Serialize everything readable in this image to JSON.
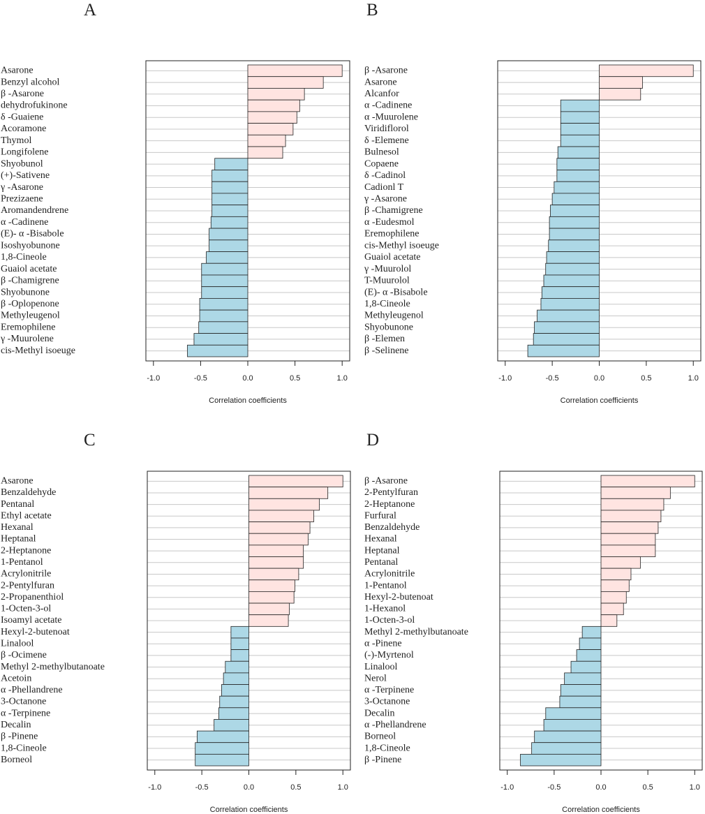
{
  "chart_data": [
    {
      "type": "bar",
      "orientation": "horizontal",
      "title": "A",
      "xlabel": "Correlation coefficients",
      "categories": [
        "Asarone",
        "Benzyl alcohol",
        "β -Asarone",
        "dehydrofukinone",
        "δ -Guaiene",
        "Acoramone",
        "Thymol",
        "Longifolene",
        "Shyobunol",
        "(+)-Sativene",
        "γ -Asarone",
        "Prezizaene",
        "Aromandendrene",
        "α -Cadinene",
        "(E)- α -Bisabole",
        "Isoshyobunone",
        "1,8-Cineole",
        "Guaiol acetate",
        "β -Chamigrene",
        "Shyobunone",
        "β -Oplopenone",
        "Methyleugenol",
        "Eremophilene",
        "γ -Muurolene",
        "cis-Methyl isoeuge"
      ],
      "values": [
        1.0,
        0.8,
        0.6,
        0.55,
        0.52,
        0.48,
        0.4,
        0.37,
        -0.35,
        -0.38,
        -0.38,
        -0.38,
        -0.38,
        -0.39,
        -0.41,
        -0.41,
        -0.44,
        -0.49,
        -0.49,
        -0.49,
        -0.51,
        -0.51,
        -0.52,
        -0.57,
        -0.64
      ],
      "colors": {
        "positive": "#ffe4e1",
        "negative": "#add8e6"
      },
      "grid": true,
      "xlim": [
        -1.08,
        1.08
      ],
      "xticks": [
        {
          "value": -1,
          "label": "-1.0"
        },
        {
          "value": -0.5,
          "label": "-0.5"
        },
        {
          "value": 0,
          "label": "0.0"
        },
        {
          "value": 0.5,
          "label": "0.5"
        },
        {
          "value": 1,
          "label": "1.0"
        }
      ]
    },
    {
      "type": "bar",
      "orientation": "horizontal",
      "title": "B",
      "xlabel": "Correlation coefficients",
      "categories": [
        "β -Asarone",
        "Asarone",
        "Alcanfor",
        "α -Cadinene",
        "α -Muurolene",
        "Viridiflorol",
        "δ -Elemene",
        "Bulnesol",
        "Copaene",
        "δ -Cadinol",
        "Cadionl T",
        "γ -Asarone",
        "β -Chamigrene",
        "α -Eudesmol",
        "Eremophilene",
        "cis-Methyl isoeuge",
        "Guaiol acetate",
        "γ -Muurolol",
        "T-Muurolol",
        "(E)- α -Bisabole",
        "1,8-Cineole",
        "Methyleugenol",
        "Shyobunone",
        "β -Elemen",
        "β -Selinene"
      ],
      "values": [
        1.0,
        0.46,
        0.44,
        -0.41,
        -0.41,
        -0.41,
        -0.41,
        -0.44,
        -0.45,
        -0.45,
        -0.48,
        -0.5,
        -0.52,
        -0.53,
        -0.53,
        -0.54,
        -0.56,
        -0.57,
        -0.59,
        -0.61,
        -0.62,
        -0.66,
        -0.69,
        -0.7,
        -0.76
      ],
      "colors": {
        "positive": "#ffe4e1",
        "negative": "#add8e6"
      },
      "grid": true,
      "xlim": [
        -1.08,
        1.08
      ],
      "xticks": [
        {
          "value": -1,
          "label": "-1.0"
        },
        {
          "value": -0.5,
          "label": "-0.5"
        },
        {
          "value": 0,
          "label": "0.0"
        },
        {
          "value": 0.5,
          "label": "0.5"
        },
        {
          "value": 1,
          "label": "1.0"
        }
      ]
    },
    {
      "type": "bar",
      "orientation": "horizontal",
      "title": "C",
      "xlabel": "Correlation coefficients",
      "categories": [
        "Asarone",
        "Benzaldehyde",
        "Pentanal",
        "Ethyl acetate",
        "Hexanal",
        "Heptanal",
        "2-Heptanone",
        "1-Pentanol",
        "Acrylonitrile",
        "2-Pentylfuran",
        "2-Propanenthiol",
        "1-Octen-3-ol",
        "Isoamyl acetate",
        "Hexyl-2-butenoat",
        "Linalool",
        "β -Ocimene",
        "Methyl 2-methylbutanoate",
        "Acetoin",
        "α -Phellandrene",
        "3-Octanone",
        "α -Terpinene",
        "Decalin",
        "β -Pinene",
        "1,8-Cineole",
        "Borneol"
      ],
      "values": [
        1.0,
        0.84,
        0.75,
        0.69,
        0.65,
        0.63,
        0.58,
        0.58,
        0.53,
        0.49,
        0.48,
        0.43,
        0.42,
        -0.19,
        -0.19,
        -0.19,
        -0.25,
        -0.27,
        -0.29,
        -0.31,
        -0.32,
        -0.37,
        -0.55,
        -0.57,
        -0.57
      ],
      "colors": {
        "positive": "#ffe4e1",
        "negative": "#add8e6"
      },
      "grid": true,
      "xlim": [
        -1.08,
        1.08
      ],
      "xticks": [
        {
          "value": -1,
          "label": "-1.0"
        },
        {
          "value": -0.5,
          "label": "-0.5"
        },
        {
          "value": 0,
          "label": "0.0"
        },
        {
          "value": 0.5,
          "label": "0.5"
        },
        {
          "value": 1,
          "label": "1.0"
        }
      ]
    },
    {
      "type": "bar",
      "orientation": "horizontal",
      "title": "D",
      "xlabel": "Correlation coefficients",
      "categories": [
        "β -Asarone",
        "2-Pentylfuran",
        "2-Heptanone",
        "Furfural",
        "Benzaldehyde",
        "Hexanal",
        "Heptanal",
        "Pentanal",
        "Acrylonitrile",
        "1-Pentanol",
        "Hexyl-2-butenoat",
        "1-Hexanol",
        "1-Octen-3-ol",
        "Methyl 2-methylbutanoate",
        "α -Pinene",
        "(-)-Myrtenol",
        "Linalool",
        "Nerol",
        "α -Terpinene",
        "3-Octanone",
        "Decalin",
        "α -Phellandrene",
        "Borneol",
        "1,8-Cineole",
        "β -Pinene"
      ],
      "values": [
        1.0,
        0.74,
        0.67,
        0.64,
        0.61,
        0.58,
        0.58,
        0.42,
        0.32,
        0.3,
        0.27,
        0.24,
        0.17,
        -0.2,
        -0.23,
        -0.26,
        -0.32,
        -0.39,
        -0.43,
        -0.44,
        -0.59,
        -0.61,
        -0.71,
        -0.74,
        -0.86
      ],
      "colors": {
        "positive": "#ffe4e1",
        "negative": "#add8e6"
      },
      "grid": true,
      "xlim": [
        -1.08,
        1.08
      ],
      "xticks": [
        {
          "value": -1,
          "label": "-1.0"
        },
        {
          "value": -0.5,
          "label": "-0.5"
        },
        {
          "value": 0,
          "label": "0.0"
        },
        {
          "value": 0.5,
          "label": "0.5"
        },
        {
          "value": 1,
          "label": "1.0"
        }
      ]
    }
  ]
}
